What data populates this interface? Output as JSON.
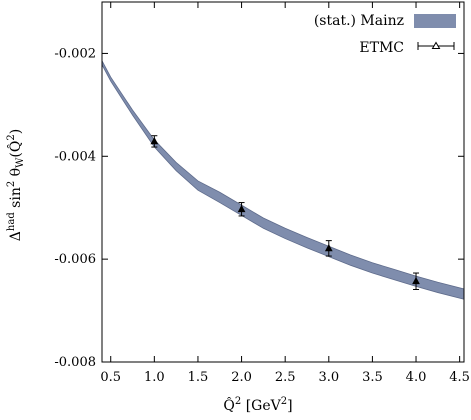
{
  "chart_data": {
    "type": "line",
    "title": "",
    "xlabel": "Q̂² [GeV²]",
    "ylabel": "Δ^had sin² θ_W(Q̂²)",
    "xlim": [
      0.4,
      4.55
    ],
    "ylim": [
      -0.008,
      -0.001
    ],
    "x_ticks": [
      0.5,
      1.0,
      1.5,
      2.0,
      2.5,
      3.0,
      3.5,
      4.0,
      4.5
    ],
    "x_tick_labels": [
      "0.5",
      "1.0",
      "1.5",
      "2.0",
      "2.5",
      "3.0",
      "3.5",
      "4.0",
      "4.5"
    ],
    "y_ticks": [
      -0.008,
      -0.006,
      -0.004,
      -0.002
    ],
    "y_tick_labels": [
      "-0.008",
      "-0.006",
      "-0.004",
      "-0.002"
    ],
    "grid": false,
    "legend_position": "top-right",
    "band_color": "#7f8dad",
    "band_edge_color": "#5f6c8c",
    "series": [
      {
        "name": "(stat.) Mainz",
        "kind": "band",
        "x": [
          0.4,
          0.5,
          0.75,
          1.0,
          1.25,
          1.5,
          1.75,
          2.0,
          2.25,
          2.5,
          2.75,
          3.0,
          3.25,
          3.5,
          3.75,
          4.0,
          4.25,
          4.55
        ],
        "center": [
          -0.00218,
          -0.0025,
          -0.00315,
          -0.00375,
          -0.0042,
          -0.00457,
          -0.0048,
          -0.00505,
          -0.0053,
          -0.0055,
          -0.00568,
          -0.00585,
          -0.00602,
          -0.00617,
          -0.0063,
          -0.00643,
          -0.00655,
          -0.00668
        ],
        "half_width": [
          4e-05,
          4e-05,
          5e-05,
          7e-05,
          8e-05,
          9e-05,
          0.0001,
          0.0001,
          0.0001,
          0.0001,
          0.0001,
          0.0001,
          0.0001,
          0.0001,
          0.0001,
          0.0001,
          0.0001,
          0.0001
        ]
      },
      {
        "name": "ETMC",
        "kind": "points",
        "x": [
          1.0,
          2.0,
          3.0,
          4.0
        ],
        "y": [
          -0.00371,
          -0.00503,
          -0.00579,
          -0.00643
        ],
        "yerr": [
          0.00011,
          0.00013,
          0.00015,
          0.00016
        ]
      }
    ]
  }
}
